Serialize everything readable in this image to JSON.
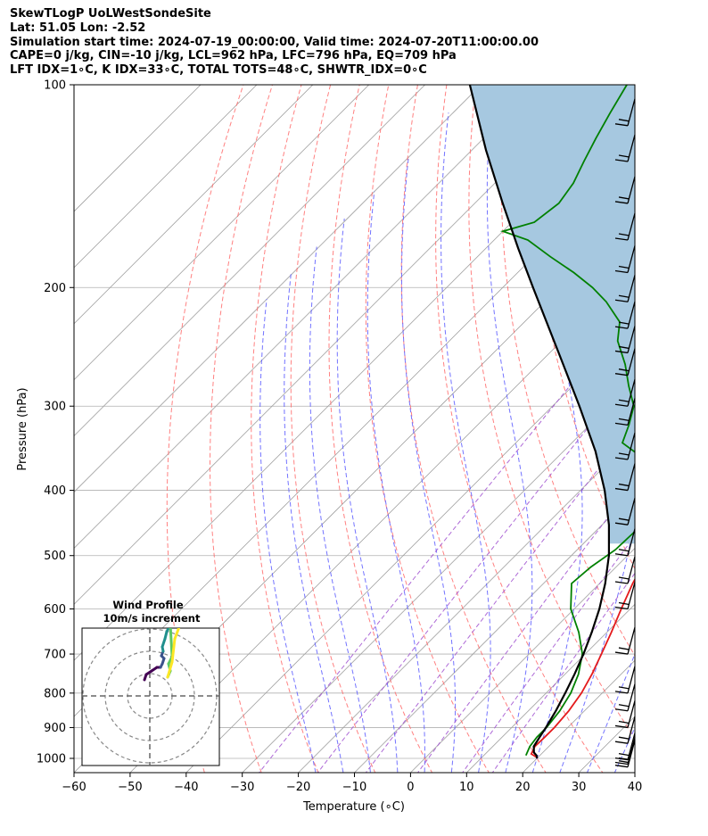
{
  "header": {
    "lines": [
      "SkewTLogP UoLWestSondeSite",
      "Lat: 51.05   Lon: -2.52",
      "Simulation start time: 2024-07-19_00:00:00, Valid time: 2024-07-20T11:00:00.00",
      "CAPE=0 j/kg, CIN=-10 j/kg, LCL=962 hPa, LFC=796 hPa, EQ=709 hPa",
      "LFT IDX=1∘C, K IDX=33∘C, TOTAL TOTS=48∘C, SHWTR_IDX=0∘C"
    ]
  },
  "chart_data": {
    "type": "line",
    "subtype": "skew-t log-p",
    "xlabel": "Temperature (∘C)",
    "ylabel": "Pressure (hPa)",
    "xlim": [
      -60,
      40
    ],
    "ylim": [
      1050,
      100
    ],
    "yscale": "log",
    "x_ticks": [
      "−60",
      "−50",
      "−40",
      "−30",
      "−20",
      "−10",
      "0",
      "10",
      "20",
      "30",
      "40"
    ],
    "x_tick_values": [
      -60,
      -50,
      -40,
      -30,
      -20,
      -10,
      0,
      10,
      20,
      30,
      40
    ],
    "y_ticks": [
      "100",
      "200",
      "300",
      "400",
      "500",
      "600",
      "700",
      "800",
      "900",
      "1000"
    ],
    "y_tick_values": [
      100,
      200,
      300,
      400,
      500,
      600,
      700,
      800,
      900,
      1000
    ],
    "grid": true,
    "colors": {
      "temperature": "#e41a1c",
      "dewpoint": "#008000",
      "parcel": "#000000",
      "cape_fill": "#a6c8e0",
      "dry_adiabat": "#ff6b6b",
      "moist_adiabat": "#5a5aff",
      "mixing_ratio": "#a050d0",
      "isotherm": "#a0a0a0"
    },
    "series": [
      {
        "key": "temperature",
        "p": [
          995,
          985,
          960,
          930,
          900,
          850,
          800,
          750,
          700,
          650,
          600,
          550,
          500,
          450,
          400,
          370,
          350,
          320,
          300,
          280,
          260,
          240,
          220,
          200,
          180,
          165,
          150,
          140,
          130,
          125,
          120,
          110,
          100
        ],
        "t": [
          19.6,
          18.2,
          17.5,
          17.6,
          17.6,
          17.2,
          16.3,
          14.8,
          12.9,
          10.8,
          8.4,
          5.9,
          3.7,
          1.0,
          -1.4,
          -3.5,
          -6.0,
          -10.0,
          -13.0,
          -16.0,
          -19.0,
          -22.5,
          -27.0,
          -31.0,
          -34.0,
          -38.0,
          -43.0,
          -46.0,
          -49.0,
          -52.0,
          -54.0,
          -57.0,
          -60.0
        ]
      },
      {
        "key": "dewpoint",
        "p": [
          990,
          960,
          930,
          900,
          850,
          800,
          750,
          700,
          650,
          600,
          550,
          520,
          490,
          450,
          400,
          380,
          360,
          340,
          320,
          300,
          280,
          260,
          240,
          225,
          210,
          200,
          190,
          180,
          170,
          165,
          160,
          150,
          140,
          130,
          120,
          110,
          100
        ],
        "t": [
          17.5,
          16.6,
          16.2,
          16.2,
          15.6,
          14.4,
          12.4,
          9.5,
          5.0,
          -0.6,
          -5.0,
          -4.5,
          -3.2,
          -2.9,
          -6.0,
          -9.0,
          -14.0,
          -21.0,
          -23.0,
          -25.5,
          -30.0,
          -34.5,
          -40.0,
          -43.0,
          -49.0,
          -54.0,
          -60.0,
          -67.0,
          -74.0,
          -80.0,
          -76.0,
          -75.0,
          -76.0,
          -78.0,
          -80.0,
          -82.0,
          -84.0
        ]
      },
      {
        "key": "parcel",
        "p": [
          1000,
          990,
          980,
          960,
          930,
          900,
          850,
          800,
          750,
          700,
          650,
          600,
          550,
          500,
          450,
          400,
          350,
          300,
          250,
          200,
          175,
          150,
          125,
          100
        ],
        "t": [
          20.0,
          19.4,
          18.4,
          17.3,
          16.7,
          16.1,
          14.9,
          13.4,
          11.7,
          9.7,
          7.3,
          4.5,
          1.0,
          -3.3,
          -8.8,
          -15.7,
          -24.3,
          -35.2,
          -48.4,
          -64.6,
          -74.2,
          -85.0,
          -97.5,
          -112.0
        ]
      }
    ],
    "wind_barbs": {
      "p": [
        1030,
        1020,
        1005,
        950,
        900,
        850,
        800,
        700,
        600,
        550,
        500,
        450,
        400,
        360,
        320,
        300,
        270,
        250,
        230,
        210,
        190,
        170,
        150,
        130,
        115
      ],
      "note": "wind barbs plotted along right edge at x = 40∘C"
    },
    "inset": {
      "title": "Wind Profile",
      "subtitle": "10m/s increment",
      "track_colors": [
        "#440154",
        "#3b528b",
        "#21908d",
        "#5dc863",
        "#fde725"
      ]
    }
  }
}
